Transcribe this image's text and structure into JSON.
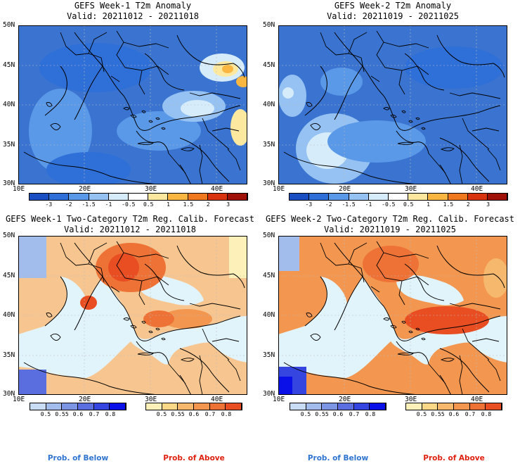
{
  "panels": [
    {
      "id": "tl",
      "title": "GEFS Week-1 T2m Anomaly",
      "valid": "Valid: 20211012 - 20211018",
      "lat_labels": [
        "50N",
        "45N",
        "40N",
        "35N",
        "30N"
      ],
      "lon_labels": [
        "10E",
        "20E",
        "30E",
        "40E"
      ]
    },
    {
      "id": "tr",
      "title": "GEFS Week-2 T2m Anomaly",
      "valid": "Valid: 20211019 - 20211025",
      "lat_labels": [
        "50N",
        "45N",
        "40N",
        "35N",
        "30N"
      ],
      "lon_labels": [
        "10E",
        "20E",
        "30E",
        "40E"
      ]
    },
    {
      "id": "bl",
      "title": "GEFS Week-1 Two-Category T2m Reg. Calib. Forecast",
      "valid": "Valid: 20211012 - 20211018",
      "lat_labels": [
        "50N",
        "45N",
        "40N",
        "35N",
        "30N"
      ],
      "lon_labels": [
        "10E",
        "20E",
        "30E",
        "40E"
      ]
    },
    {
      "id": "br",
      "title": "GEFS Week-2 Two-Category T2m Reg. Calib. Forecast",
      "valid": "Valid: 20211019 - 20211025",
      "lat_labels": [
        "50N",
        "45N",
        "40N",
        "35N",
        "30N"
      ],
      "lon_labels": [
        "10E",
        "20E",
        "30E",
        "40E"
      ]
    }
  ],
  "anomaly_colorbar": {
    "labels": [
      "-3",
      "-2",
      "-1.5",
      "-1",
      "-0.5",
      "0.5",
      "1",
      "1.5",
      "2",
      "3"
    ],
    "colors": [
      "#1a4fc4",
      "#2e6fd8",
      "#5a98e8",
      "#95c2f2",
      "#d6ecfb",
      "#ffffff",
      "#fde8a0",
      "#f9b640",
      "#f0781e",
      "#d83410",
      "#a01208"
    ]
  },
  "below_colorbar": {
    "labels": [
      "0.5",
      "0.55",
      "0.6",
      "0.7",
      "0.8"
    ],
    "colors": [
      "#c8dcf4",
      "#a2bcec",
      "#7c96e4",
      "#5a6ee0",
      "#3546e0",
      "#0a10e8"
    ]
  },
  "above_colorbar": {
    "labels": [
      "0.5",
      "0.55",
      "0.6",
      "0.7",
      "0.8"
    ],
    "colors": [
      "#fdf0b8",
      "#fbd888",
      "#f6b86c",
      "#f29650",
      "#ee7236",
      "#e84e22"
    ]
  },
  "footer": {
    "below_label": "Prob. of Below",
    "above_label": "Prob. of Above",
    "below_color": "#2f74d0",
    "above_color": "#e02010"
  },
  "colors": {
    "anom_base": "#3c7fd9",
    "sea_light": "#e2f4fb",
    "prob_land": "#f7c690"
  }
}
